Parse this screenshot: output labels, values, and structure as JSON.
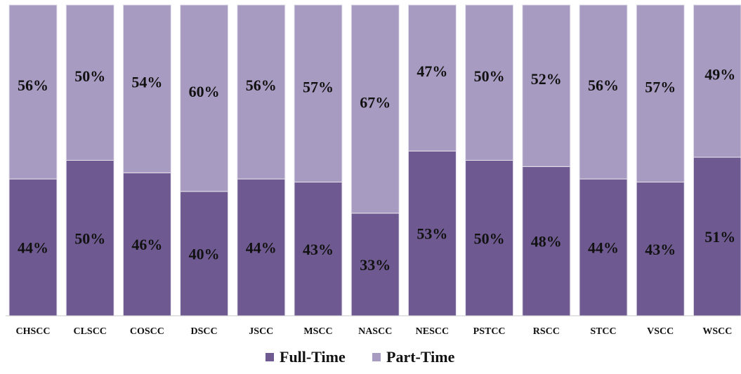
{
  "chart_data": {
    "type": "bar",
    "stacked": true,
    "percent_stacked": true,
    "categories": [
      "CHSCC",
      "CLSCC",
      "COSCC",
      "DSCC",
      "JSCC",
      "MSCC",
      "NASCC",
      "NESCC",
      "PSTCC",
      "RSCC",
      "STCC",
      "VSCC",
      "WSCC"
    ],
    "series": [
      {
        "name": "Full-Time",
        "color": "#6e5a90",
        "values": [
          44,
          50,
          46,
          40,
          44,
          43,
          33,
          53,
          50,
          48,
          44,
          43,
          51
        ],
        "labels": [
          "44%",
          "50%",
          "46%",
          "40%",
          "44%",
          "43%",
          "33%",
          "53%",
          "50%",
          "48%",
          "44%",
          "43%",
          "51%"
        ]
      },
      {
        "name": "Part-Time",
        "color": "#a89bc1",
        "values": [
          56,
          50,
          54,
          60,
          56,
          57,
          67,
          47,
          50,
          52,
          56,
          57,
          49
        ],
        "labels": [
          "56%",
          "50%",
          "54%",
          "60%",
          "56%",
          "57%",
          "67%",
          "47%",
          "50%",
          "52%",
          "56%",
          "57%",
          "49%"
        ]
      }
    ],
    "ylim": [
      0,
      100
    ],
    "grid": false,
    "legend_position": "bottom"
  }
}
